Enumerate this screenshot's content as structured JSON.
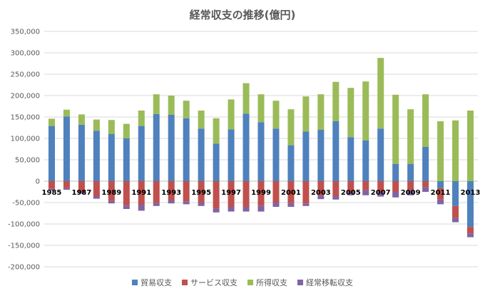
{
  "chart_data": {
    "type": "bar",
    "stacked": true,
    "title": "経常収支の推移(億円)",
    "xlabel": "",
    "ylabel": "",
    "ylim": [
      -200000,
      350000
    ],
    "yticks": [
      350000,
      300000,
      250000,
      200000,
      150000,
      100000,
      50000,
      0,
      -50000,
      -100000,
      -150000,
      -200000
    ],
    "ytick_labels": [
      "350,000",
      "300,000",
      "250,000",
      "200,000",
      "150,000",
      "100,000",
      "50,000",
      "0",
      "-50,000",
      "-100,000",
      "-150,000",
      "-200,000"
    ],
    "grid": true,
    "legend_position": "bottom",
    "categories": [
      "1985",
      "1986",
      "1987",
      "1988",
      "1989",
      "1990",
      "1991",
      "1992",
      "1993",
      "1994",
      "1995",
      "1996",
      "1997",
      "1998",
      "1999",
      "2000",
      "2001",
      "2002",
      "2003",
      "2004",
      "2005",
      "2006",
      "2007",
      "2008",
      "2009",
      "2010",
      "2011",
      "2012",
      "2013"
    ],
    "xtick_labels_shown": [
      "1985",
      "",
      "1987",
      "",
      "1989",
      "",
      "1991",
      "",
      "1993",
      "",
      "1995",
      "",
      "1997",
      "",
      "1999",
      "",
      "2001",
      "",
      "2003",
      "",
      "2005",
      "",
      "2007",
      "",
      "2009",
      "",
      "2011",
      "",
      "2013"
    ],
    "series": [
      {
        "name": "貿易収支",
        "color": "#4F81BD",
        "values": [
          129000,
          151000,
          132000,
          118000,
          110000,
          100000,
          129000,
          157000,
          155000,
          147000,
          123000,
          88000,
          121000,
          158000,
          138000,
          123000,
          84000,
          116000,
          120000,
          140000,
          103000,
          95000,
          123000,
          40000,
          40000,
          80000,
          -16000,
          -58000,
          -107000
        ]
      },
      {
        "name": "サービス収支",
        "color": "#C0504D",
        "values": [
          -18000,
          -16000,
          -25000,
          -35000,
          -46000,
          -57000,
          -55000,
          -51000,
          -45000,
          -47000,
          -50000,
          -64000,
          -60000,
          -60000,
          -58000,
          -50000,
          -51000,
          -52000,
          -34000,
          -35000,
          -26000,
          -21000,
          -25000,
          -25000,
          -21000,
          -14000,
          -27000,
          -28000,
          -15000
        ]
      },
      {
        "name": "所得収支",
        "color": "#9BBB59",
        "values": [
          17000,
          16000,
          24000,
          26000,
          33000,
          34000,
          36000,
          46000,
          45000,
          41000,
          42000,
          59000,
          70000,
          71000,
          65000,
          65000,
          84000,
          82000,
          83000,
          92000,
          115000,
          138000,
          165000,
          162000,
          128000,
          123000,
          140000,
          142000,
          165000
        ]
      },
      {
        "name": "経常移転収支",
        "color": "#8064A2",
        "values": [
          -4000,
          -4000,
          -4000,
          -6000,
          -6000,
          -8000,
          -14000,
          -7000,
          -7000,
          -7000,
          -8000,
          -9000,
          -11000,
          -11000,
          -13000,
          -10000,
          -9000,
          -6000,
          -8000,
          -8000,
          -7000,
          -12000,
          -11000,
          -13000,
          -12000,
          -11000,
          -11000,
          -10000,
          -9000
        ]
      }
    ]
  }
}
